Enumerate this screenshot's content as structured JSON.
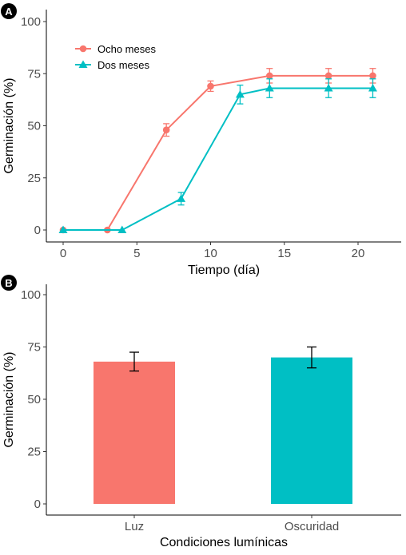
{
  "chart_data": [
    {
      "panel": "A",
      "type": "line",
      "xlabel": "Tiempo (día)",
      "ylabel": "Germinación (%)",
      "xlim": [
        -0.8,
        22.5
      ],
      "ylim": [
        0,
        100
      ],
      "xticks": [
        0,
        5,
        10,
        15,
        20
      ],
      "yticks": [
        0,
        25,
        50,
        75,
        100
      ],
      "grid": false,
      "legend_position": "top-left",
      "series": [
        {
          "name": "Ocho meses",
          "color": "#F8766D",
          "marker": "circle",
          "x": [
            0,
            3,
            7,
            10,
            14,
            18,
            21
          ],
          "y": [
            0,
            0,
            48,
            69,
            74,
            74,
            74
          ],
          "err": [
            0,
            0,
            3,
            2.5,
            3.5,
            3.5,
            3.5
          ]
        },
        {
          "name": "Dos meses",
          "color": "#00BFC4",
          "marker": "triangle",
          "x": [
            0,
            4,
            8,
            12,
            14,
            18,
            21
          ],
          "y": [
            0,
            0,
            15,
            65,
            68,
            68,
            68
          ],
          "err": [
            0,
            0,
            3,
            4.5,
            4.5,
            4.5,
            4.5
          ]
        }
      ]
    },
    {
      "panel": "B",
      "type": "bar",
      "xlabel": "Condiciones lumínicas",
      "ylabel": "Germinación (%)",
      "categories": [
        "Luz",
        "Oscuridad"
      ],
      "values": [
        68,
        70
      ],
      "err": [
        4.5,
        5
      ],
      "colors": [
        "#F8766D",
        "#00BFC4"
      ],
      "ylim": [
        0,
        100
      ],
      "yticks": [
        0,
        25,
        50,
        75,
        100
      ],
      "grid": false
    }
  ]
}
